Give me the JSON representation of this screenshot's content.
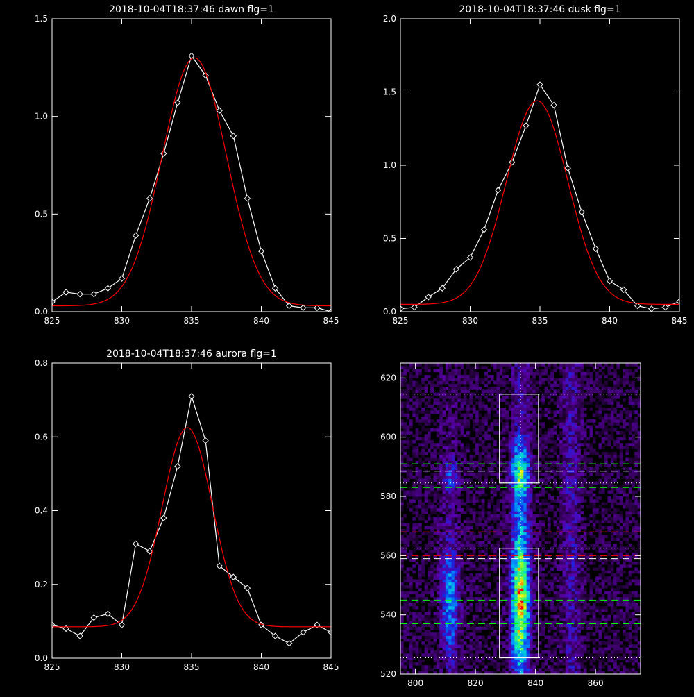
{
  "chart_data": [
    {
      "type": "line",
      "title": "2018-10-04T18:37:46 dawn flg=1",
      "xlim": [
        825,
        845
      ],
      "ylim": [
        0,
        1.5
      ],
      "xticks": [
        "825",
        "830",
        "835",
        "840",
        "845"
      ],
      "yticks": [
        "0.0",
        "0.5",
        "1.0",
        "1.5"
      ],
      "series": [
        {
          "color": "#ffffff",
          "markers": "diamond",
          "x": [
            825,
            826,
            827,
            828,
            829,
            830,
            831,
            832,
            833,
            834,
            835,
            836,
            837,
            838,
            839,
            840,
            841,
            842,
            843,
            844,
            845
          ],
          "y": [
            0.05,
            0.1,
            0.09,
            0.09,
            0.12,
            0.17,
            0.39,
            0.58,
            0.81,
            1.07,
            1.31,
            1.21,
            1.03,
            0.9,
            0.58,
            0.31,
            0.12,
            0.03,
            0.02,
            0.02,
            0.0
          ]
        },
        {
          "color": "#ff0000",
          "markers": "none",
          "fit": {
            "amplitude": 1.27,
            "center": 835.2,
            "sigma": 2.3,
            "baseline": 0.03
          }
        }
      ]
    },
    {
      "type": "line",
      "title": "2018-10-04T18:37:46 dusk flg=1",
      "xlim": [
        825,
        845
      ],
      "ylim": [
        0,
        2.0
      ],
      "xticks": [
        "825",
        "830",
        "835",
        "840",
        "845"
      ],
      "yticks": [
        "0.0",
        "0.5",
        "1.0",
        "1.5",
        "2.0"
      ],
      "series": [
        {
          "color": "#ffffff",
          "markers": "diamond",
          "x": [
            825,
            826,
            827,
            828,
            829,
            830,
            831,
            832,
            833,
            834,
            835,
            836,
            837,
            838,
            839,
            840,
            841,
            842,
            843,
            844,
            845
          ],
          "y": [
            0.02,
            0.03,
            0.1,
            0.16,
            0.29,
            0.37,
            0.56,
            0.83,
            1.02,
            1.27,
            1.55,
            1.41,
            0.98,
            0.68,
            0.43,
            0.21,
            0.15,
            0.04,
            0.02,
            0.03,
            0.07
          ]
        },
        {
          "color": "#ff0000",
          "markers": "none",
          "fit": {
            "amplitude": 1.39,
            "center": 834.8,
            "sigma": 2.2,
            "baseline": 0.05
          }
        }
      ]
    },
    {
      "type": "line",
      "title": "2018-10-04T18:37:46 aurora flg=1",
      "xlim": [
        825,
        845
      ],
      "ylim": [
        0,
        0.8
      ],
      "xticks": [
        "825",
        "830",
        "835",
        "840",
        "845"
      ],
      "yticks": [
        "0.0",
        "0.2",
        "0.4",
        "0.6",
        "0.8"
      ],
      "series": [
        {
          "color": "#ffffff",
          "markers": "diamond",
          "x": [
            825,
            826,
            827,
            828,
            829,
            830,
            831,
            832,
            833,
            834,
            835,
            836,
            837,
            838,
            839,
            840,
            841,
            842,
            843,
            844,
            845
          ],
          "y": [
            0.09,
            0.08,
            0.06,
            0.11,
            0.12,
            0.09,
            0.31,
            0.29,
            0.38,
            0.52,
            0.71,
            0.59,
            0.25,
            0.22,
            0.19,
            0.09,
            0.06,
            0.04,
            0.07,
            0.09,
            0.07
          ]
        },
        {
          "color": "#ff0000",
          "markers": "none",
          "fit": {
            "amplitude": 0.54,
            "center": 834.7,
            "sigma": 1.8,
            "baseline": 0.085
          }
        }
      ]
    },
    {
      "type": "heatmap",
      "title": "",
      "xlim": [
        795,
        875
      ],
      "ylim": [
        520,
        625
      ],
      "xticks": [
        "800",
        "820",
        "840",
        "860"
      ],
      "yticks": [
        "520",
        "540",
        "560",
        "580",
        "600",
        "620"
      ],
      "emission_columns": [
        {
          "center": 811.5,
          "strength": 0.45
        },
        {
          "center": 835.0,
          "strength": 0.85
        },
        {
          "center": 852.0,
          "strength": 0.18
        }
      ],
      "boxes": [
        {
          "x": [
            828,
            841
          ],
          "y": [
            584.5,
            614.5
          ],
          "color": "#ffffff"
        },
        {
          "x": [
            828,
            841
          ],
          "y": [
            525.5,
            562.5
          ],
          "color": "#ffffff"
        }
      ],
      "vertical_dotted_line": 835,
      "hlines": [
        {
          "y": 614.5,
          "color": "#ffffff",
          "style": "dotted"
        },
        {
          "y": 591,
          "color": "#00ff00",
          "style": "dashed"
        },
        {
          "y": 588.5,
          "color": "#ffffff",
          "style": "dashed"
        },
        {
          "y": 584.5,
          "color": "#ffffff",
          "style": "dotted"
        },
        {
          "y": 583,
          "color": "#00ff00",
          "style": "dashed"
        },
        {
          "y": 568,
          "color": "#ff0000",
          "style": "dashed"
        },
        {
          "y": 562.5,
          "color": "#ffffff",
          "style": "dotted"
        },
        {
          "y": 560,
          "color": "#ff0000",
          "style": "dashed"
        },
        {
          "y": 559,
          "color": "#ffffff",
          "style": "dashed"
        },
        {
          "y": 545,
          "color": "#00ff00",
          "style": "dashed"
        },
        {
          "y": 537,
          "color": "#00ff00",
          "style": "dashed"
        },
        {
          "y": 525.5,
          "color": "#ffffff",
          "style": "dotted"
        }
      ]
    }
  ]
}
